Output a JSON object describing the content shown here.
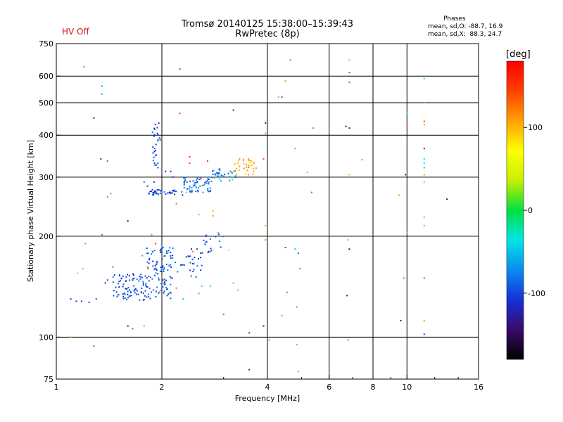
{
  "header": {
    "title_line1": "Tromsø 20140125 15:38:00–15:39:43",
    "title_line2": "RwPretec (8p)",
    "hv_status": "HV Off",
    "phases_title": "Phases",
    "phases_line1": "mean, sd,O: -88.7, 16.9",
    "phases_line2": "mean, sd,X:  88.3, 24.7"
  },
  "colorbar": {
    "unit_label": "[deg]",
    "tick_labels": [
      "100",
      "0",
      "-100"
    ],
    "tick_values": [
      100,
      0,
      -100
    ],
    "range": [
      -180,
      180
    ],
    "colors": [
      "#000000",
      "#3a0a6a",
      "#1530d8",
      "#0a8cf0",
      "#00e5e5",
      "#00e040",
      "#c8f000",
      "#ffff00",
      "#ffa000",
      "#ff4000",
      "#ff0000"
    ]
  },
  "chart_data": {
    "type": "scatter",
    "xlabel": "Frequency [MHz]",
    "ylabel": "Stationary phase Virtual Height [km]",
    "x_scale": "log",
    "y_scale": "log",
    "xlim": [
      1,
      16
    ],
    "ylim": [
      75,
      750
    ],
    "x_ticks": [
      1,
      2,
      4,
      6,
      8,
      10,
      16
    ],
    "x_tick_labels": [
      "1",
      "2",
      "4",
      "6",
      "8",
      "10",
      "16"
    ],
    "x_grid": [
      2,
      4,
      6,
      8,
      10
    ],
    "y_ticks": [
      75,
      100,
      200,
      300,
      400,
      500,
      600,
      750
    ],
    "y_tick_labels": [
      "75",
      "100",
      "200",
      "300",
      "400",
      "500",
      "600",
      "750"
    ],
    "y_grid": [
      100,
      200,
      300,
      400,
      500,
      600
    ],
    "color_by": "phase (deg)",
    "points": [
      {
        "x": 1.2,
        "y": 640,
        "p": -60
      },
      {
        "x": 1.35,
        "y": 560,
        "p": -60
      },
      {
        "x": 1.35,
        "y": 530,
        "p": -50
      },
      {
        "x": 1.28,
        "y": 450,
        "p": -140
      },
      {
        "x": 1.34,
        "y": 340,
        "p": -110
      },
      {
        "x": 1.4,
        "y": 335,
        "p": -70
      },
      {
        "x": 1.4,
        "y": 262,
        "p": 130
      },
      {
        "x": 1.43,
        "y": 268,
        "p": -60
      },
      {
        "x": 1.6,
        "y": 222,
        "p": -140
      },
      {
        "x": 1.35,
        "y": 202,
        "p": -70
      },
      {
        "x": 1.21,
        "y": 190,
        "p": -50
      },
      {
        "x": 1.19,
        "y": 160,
        "p": 20
      },
      {
        "x": 1.15,
        "y": 155,
        "p": 100
      },
      {
        "x": 1.1,
        "y": 130,
        "p": -100
      },
      {
        "x": 1.14,
        "y": 128,
        "p": -100
      },
      {
        "x": 1.18,
        "y": 128,
        "p": -100
      },
      {
        "x": 1.24,
        "y": 127,
        "p": -110
      },
      {
        "x": 1.3,
        "y": 130,
        "p": -90
      },
      {
        "x": 1.38,
        "y": 145,
        "p": -120
      },
      {
        "x": 1.4,
        "y": 148,
        "p": -100
      },
      {
        "x": 1.45,
        "y": 162,
        "p": 140
      },
      {
        "x": 1.55,
        "y": 152,
        "p": -100
      },
      {
        "x": 1.6,
        "y": 108,
        "p": -140
      },
      {
        "x": 1.65,
        "y": 106,
        "p": 140
      },
      {
        "x": 1.78,
        "y": 108,
        "p": 110
      },
      {
        "x": 1.1,
        "y": 100,
        "p": 110
      },
      {
        "x": 1.28,
        "y": 94,
        "p": 140
      },
      {
        "x": 2.25,
        "y": 630,
        "p": -80
      },
      {
        "x": 2.25,
        "y": 465,
        "p": 140
      },
      {
        "x": 2.4,
        "y": 345,
        "p": 160
      },
      {
        "x": 2.4,
        "y": 330,
        "p": 150
      },
      {
        "x": 2.7,
        "y": 335,
        "p": 150
      },
      {
        "x": 3.2,
        "y": 475,
        "p": -140
      },
      {
        "x": 3.95,
        "y": 435,
        "p": -140
      },
      {
        "x": 3.95,
        "y": 405,
        "p": 120
      },
      {
        "x": 3.9,
        "y": 340,
        "p": 140
      },
      {
        "x": 4.65,
        "y": 670,
        "p": 140
      },
      {
        "x": 4.5,
        "y": 580,
        "p": 110
      },
      {
        "x": 4.3,
        "y": 520,
        "p": 110
      },
      {
        "x": 4.4,
        "y": 520,
        "p": -80
      },
      {
        "x": 5.4,
        "y": 420,
        "p": 130
      },
      {
        "x": 4.8,
        "y": 365,
        "p": 120
      },
      {
        "x": 5.2,
        "y": 310,
        "p": 110
      },
      {
        "x": 5.35,
        "y": 270,
        "p": 140
      },
      {
        "x": 6.85,
        "y": 670,
        "p": 110
      },
      {
        "x": 6.85,
        "y": 615,
        "p": 160
      },
      {
        "x": 6.85,
        "y": 575,
        "p": -60
      },
      {
        "x": 6.7,
        "y": 425,
        "p": -140
      },
      {
        "x": 6.85,
        "y": 420,
        "p": -120
      },
      {
        "x": 7.45,
        "y": 338,
        "p": -40
      },
      {
        "x": 6.85,
        "y": 305,
        "p": 100
      },
      {
        "x": 6.8,
        "y": 195,
        "p": 110
      },
      {
        "x": 6.85,
        "y": 183,
        "p": -140
      },
      {
        "x": 10.0,
        "y": 690,
        "p": -60
      },
      {
        "x": 11.2,
        "y": 590,
        "p": -40
      },
      {
        "x": 11.2,
        "y": 500,
        "p": -40
      },
      {
        "x": 10.0,
        "y": 465,
        "p": -40
      },
      {
        "x": 11.2,
        "y": 440,
        "p": 140
      },
      {
        "x": 11.2,
        "y": 430,
        "p": 110
      },
      {
        "x": 11.2,
        "y": 365,
        "p": -120
      },
      {
        "x": 11.2,
        "y": 340,
        "p": -30
      },
      {
        "x": 11.2,
        "y": 330,
        "p": -40
      },
      {
        "x": 11.2,
        "y": 320,
        "p": -50
      },
      {
        "x": 11.2,
        "y": 305,
        "p": 110
      },
      {
        "x": 11.2,
        "y": 290,
        "p": 100
      },
      {
        "x": 9.9,
        "y": 305,
        "p": -140
      },
      {
        "x": 9.5,
        "y": 265,
        "p": 110
      },
      {
        "x": 11.2,
        "y": 228,
        "p": 110
      },
      {
        "x": 11.2,
        "y": 215,
        "p": 110
      },
      {
        "x": 10.0,
        "y": 205,
        "p": -40
      },
      {
        "x": 13.0,
        "y": 258,
        "p": -140
      },
      {
        "x": 9.8,
        "y": 150,
        "p": -50
      },
      {
        "x": 11.2,
        "y": 150,
        "p": -70
      },
      {
        "x": 10.0,
        "y": 115,
        "p": -60
      },
      {
        "x": 9.6,
        "y": 112,
        "p": -140
      },
      {
        "x": 11.2,
        "y": 112,
        "p": 110
      },
      {
        "x": 11.2,
        "y": 102,
        "p": -100
      },
      {
        "x": 3.95,
        "y": 215,
        "p": 110
      },
      {
        "x": 3.95,
        "y": 195,
        "p": 120
      },
      {
        "x": 3.9,
        "y": 108,
        "p": -140
      },
      {
        "x": 3.55,
        "y": 103,
        "p": -100
      },
      {
        "x": 3.55,
        "y": 80,
        "p": -120
      },
      {
        "x": 4.05,
        "y": 98,
        "p": 120
      },
      {
        "x": 4.5,
        "y": 185,
        "p": -90
      },
      {
        "x": 4.8,
        "y": 183,
        "p": -50
      },
      {
        "x": 4.9,
        "y": 178,
        "p": -80
      },
      {
        "x": 4.95,
        "y": 160,
        "p": 130
      },
      {
        "x": 4.55,
        "y": 136,
        "p": 130
      },
      {
        "x": 4.85,
        "y": 123,
        "p": -50
      },
      {
        "x": 4.4,
        "y": 116,
        "p": 120
      },
      {
        "x": 4.85,
        "y": 95,
        "p": -40
      },
      {
        "x": 4.9,
        "y": 79,
        "p": -40
      },
      {
        "x": 6.75,
        "y": 133,
        "p": -140
      },
      {
        "x": 6.8,
        "y": 98,
        "p": 130
      },
      {
        "x": 3.0,
        "y": 117,
        "p": -70
      },
      {
        "x": 3.2,
        "y": 145,
        "p": 110
      },
      {
        "x": 3.3,
        "y": 138,
        "p": 110
      },
      {
        "x": 3.1,
        "y": 182,
        "p": 40
      },
      {
        "x": 2.9,
        "y": 205,
        "p": -40
      },
      {
        "x": 2.8,
        "y": 238,
        "p": 100
      },
      {
        "x": 2.8,
        "y": 230,
        "p": 110
      },
      {
        "x": 2.55,
        "y": 232,
        "p": 110
      },
      {
        "x": 2.2,
        "y": 250,
        "p": 130
      },
      {
        "x": 2.35,
        "y": 270,
        "p": 110
      },
      {
        "x": 1.92,
        "y": 272,
        "p": -120
      },
      {
        "x": 1.88,
        "y": 275,
        "p": -100
      },
      {
        "x": 1.82,
        "y": 282,
        "p": -110
      },
      {
        "x": 1.78,
        "y": 290,
        "p": -80
      },
      {
        "x": 1.95,
        "y": 320,
        "p": -100
      },
      {
        "x": 2.05,
        "y": 312,
        "p": -110
      },
      {
        "x": 2.12,
        "y": 312,
        "p": -100
      },
      {
        "x": 2.15,
        "y": 300,
        "p": -110
      },
      {
        "x": 1.9,
        "y": 290,
        "p": -110
      },
      {
        "x": 1.87,
        "y": 202,
        "p": 120
      },
      {
        "x": 1.92,
        "y": 190,
        "p": 160
      },
      {
        "x": 1.82,
        "y": 162,
        "p": 110
      },
      {
        "x": 1.76,
        "y": 175,
        "p": 130
      },
      {
        "x": 2.0,
        "y": 152,
        "p": 120
      },
      {
        "x": 2.2,
        "y": 140,
        "p": 130
      },
      {
        "x": 2.55,
        "y": 135,
        "p": 130
      },
      {
        "x": 2.3,
        "y": 130,
        "p": -40
      },
      {
        "x": 2.6,
        "y": 142,
        "p": -40
      },
      {
        "x": 2.75,
        "y": 142,
        "p": -30
      },
      {
        "x": 2.45,
        "y": 180,
        "p": 130
      }
    ],
    "clusters": [
      {
        "x_range": [
          1.82,
          2.3
        ],
        "y_range": [
          265,
          275
        ],
        "phase_range": [
          -120,
          -80
        ],
        "count": 40,
        "seed": 11
      },
      {
        "x_range": [
          2.3,
          2.75
        ],
        "y_range": [
          270,
          300
        ],
        "phase_range": [
          -110,
          -60
        ],
        "count": 60,
        "seed": 23
      },
      {
        "x_range": [
          2.75,
          3.25
        ],
        "y_range": [
          290,
          320
        ],
        "phase_range": [
          -100,
          -40
        ],
        "count": 35,
        "seed": 37
      },
      {
        "x_range": [
          3.2,
          3.75
        ],
        "y_range": [
          305,
          340
        ],
        "phase_range": [
          90,
          120
        ],
        "count": 35,
        "seed": 41
      },
      {
        "x_range": [
          1.88,
          1.98
        ],
        "y_range": [
          320,
          440
        ],
        "phase_range": [
          -110,
          -80
        ],
        "count": 28,
        "seed": 53
      },
      {
        "x_range": [
          1.45,
          1.8
        ],
        "y_range": [
          128,
          155
        ],
        "phase_range": [
          -120,
          -80
        ],
        "count": 80,
        "seed": 61
      },
      {
        "x_range": [
          1.8,
          2.15
        ],
        "y_range": [
          130,
          185
        ],
        "phase_range": [
          -110,
          -70
        ],
        "count": 110,
        "seed": 73
      },
      {
        "x_range": [
          2.15,
          2.6
        ],
        "y_range": [
          150,
          190
        ],
        "phase_range": [
          -110,
          -80
        ],
        "count": 30,
        "seed": 89
      },
      {
        "x_range": [
          2.6,
          3.05
        ],
        "y_range": [
          178,
          205
        ],
        "phase_range": [
          -110,
          -70
        ],
        "count": 18,
        "seed": 97
      }
    ]
  }
}
